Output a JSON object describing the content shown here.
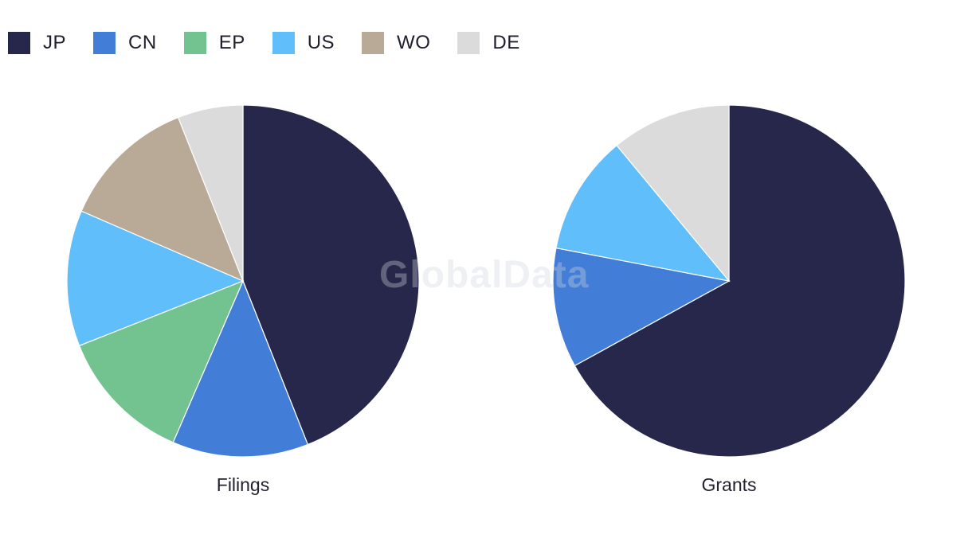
{
  "watermark": "GlobalData",
  "legend": [
    {
      "label": "JP",
      "color": "#27274b"
    },
    {
      "label": "CN",
      "color": "#427ed8"
    },
    {
      "label": "EP",
      "color": "#73c391"
    },
    {
      "label": "US",
      "color": "#60bffa"
    },
    {
      "label": "WO",
      "color": "#b8aa96"
    },
    {
      "label": "DE",
      "color": "#dbdbdb"
    }
  ],
  "chart_data": [
    {
      "type": "pie",
      "title": "Filings",
      "categories": [
        "JP",
        "CN",
        "EP",
        "US",
        "WO",
        "DE"
      ],
      "values": [
        44,
        12.5,
        12.5,
        12.5,
        12.5,
        6
      ]
    },
    {
      "type": "pie",
      "title": "Grants",
      "categories": [
        "JP",
        "CN",
        "US",
        "DE"
      ],
      "values": [
        67,
        11,
        11,
        11
      ]
    }
  ]
}
